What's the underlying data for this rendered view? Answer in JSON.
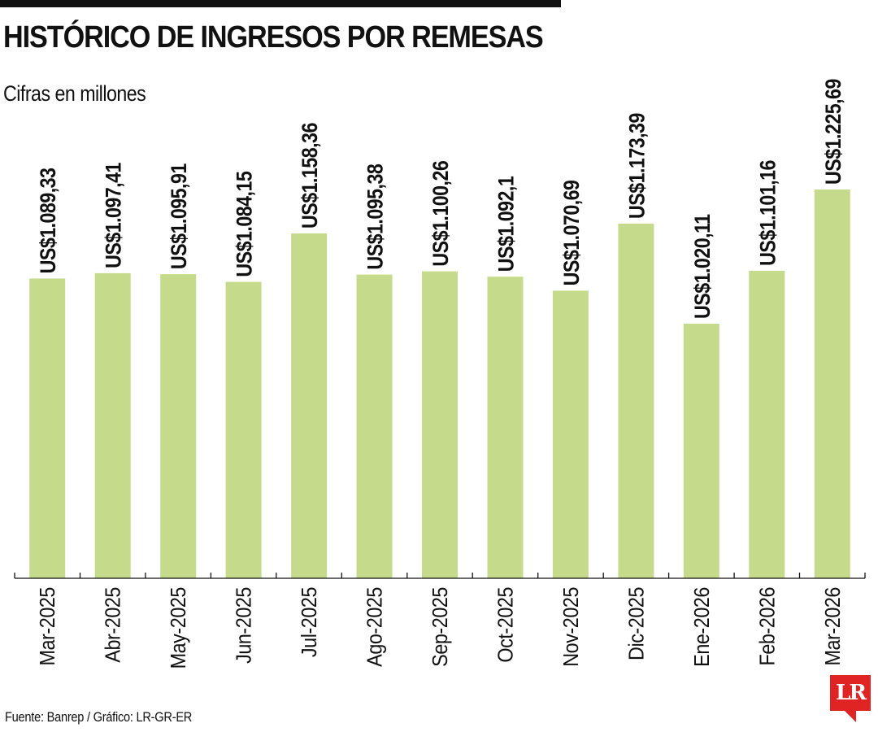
{
  "header": {
    "title": "HISTÓRICO DE INGRESOS POR REMESAS",
    "subtitle": "Cifras en millones"
  },
  "footer": {
    "source": "Fuente: Banrep / Gráfico: LR-GR-ER",
    "logo_text": "LR"
  },
  "colors": {
    "bar": "#c5da8b",
    "text": "#111111",
    "rule": "#111111",
    "logo": "#e02424"
  },
  "chart_data": {
    "type": "bar",
    "title": "HISTÓRICO DE INGRESOS POR REMESAS",
    "subtitle": "Cifras en millones",
    "categories": [
      "Mar-2025",
      "Abr-2025",
      "May-2025",
      "Jun-2025",
      "Jul-2025",
      "Ago-2025",
      "Sep-2025",
      "Oct-2025",
      "Nov-2025",
      "Dic-2025",
      "Ene-2026",
      "Feb-2026",
      "Mar-2026"
    ],
    "values": [
      1089.33,
      1097.41,
      1095.91,
      1084.15,
      1158.36,
      1095.38,
      1100.26,
      1092.1,
      1070.69,
      1173.39,
      1020.11,
      1101.16,
      1225.69
    ],
    "labels": [
      "US$1.089,33",
      "US$1.097,41",
      "US$1.095,91",
      "US$1.084,15",
      "US$1.158,36",
      "US$1.095,38",
      "US$1.100,26",
      "US$1.092,1",
      "US$1.070,69",
      "US$1.173,39",
      "US$1.020,11",
      "US$1.101,16",
      "US$1.225,69"
    ],
    "xlabel": "",
    "ylabel": "",
    "ylim": [
      630,
      1225.69
    ],
    "grid": false,
    "legend": "none"
  }
}
